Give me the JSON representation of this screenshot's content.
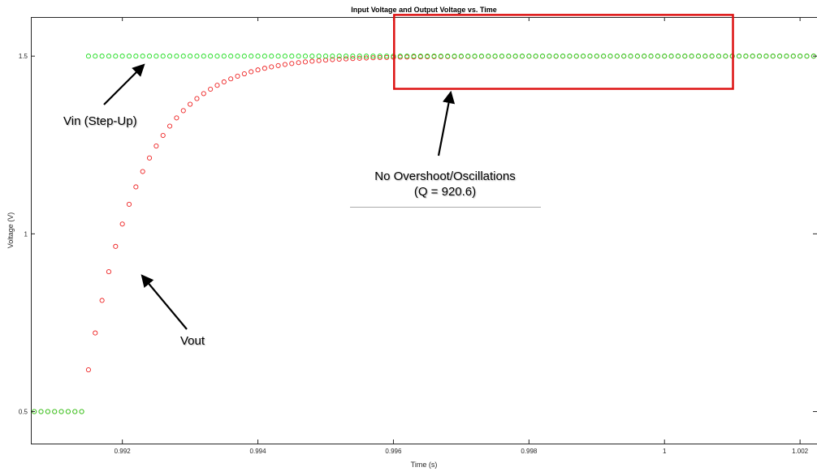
{
  "chart_data": {
    "type": "scatter",
    "title": "Input Voltage and Output Voltage vs. Time",
    "xlabel": "Time (s)",
    "ylabel": "Voltage (V)",
    "xlim": [
      0.99065,
      1.00225
    ],
    "ylim": [
      0.41,
      1.61
    ],
    "x_ticks": [
      0.992,
      0.994,
      0.996,
      0.998,
      1,
      1.002
    ],
    "x_tick_labels": [
      "0.992",
      "0.994",
      "0.996",
      "0.998",
      "1",
      "1.002"
    ],
    "y_ticks": [
      0.5,
      1,
      1.5
    ],
    "y_tick_labels": [
      "0.5",
      "1",
      "1.5"
    ],
    "grid": false,
    "marker": "open-circle",
    "sample": {
      "t_start": 0.9907,
      "dt": 0.0001,
      "count": 117,
      "step_time": 0.9915
    },
    "series": [
      {
        "role": "vin",
        "color": "#22dd22",
        "low": 0.5,
        "high": 1.5
      },
      {
        "role": "vout",
        "color": "#ee2222",
        "low": 0.5,
        "high": 1.5,
        "tau": 0.0008
      }
    ],
    "annotations": {
      "vin": "Vin (Step-Up)",
      "vout": "Vout",
      "box_line1": "No Overshoot/Oscillations",
      "box_line2": "(Q = 920.6)"
    },
    "highlight_box": {
      "x_range": [
        0.99601,
        1.00101
      ],
      "y_range": [
        1.408,
        1.616
      ],
      "color": "#dd1111"
    },
    "colors": {
      "axis": "#262626",
      "arrow": "#000000"
    }
  }
}
